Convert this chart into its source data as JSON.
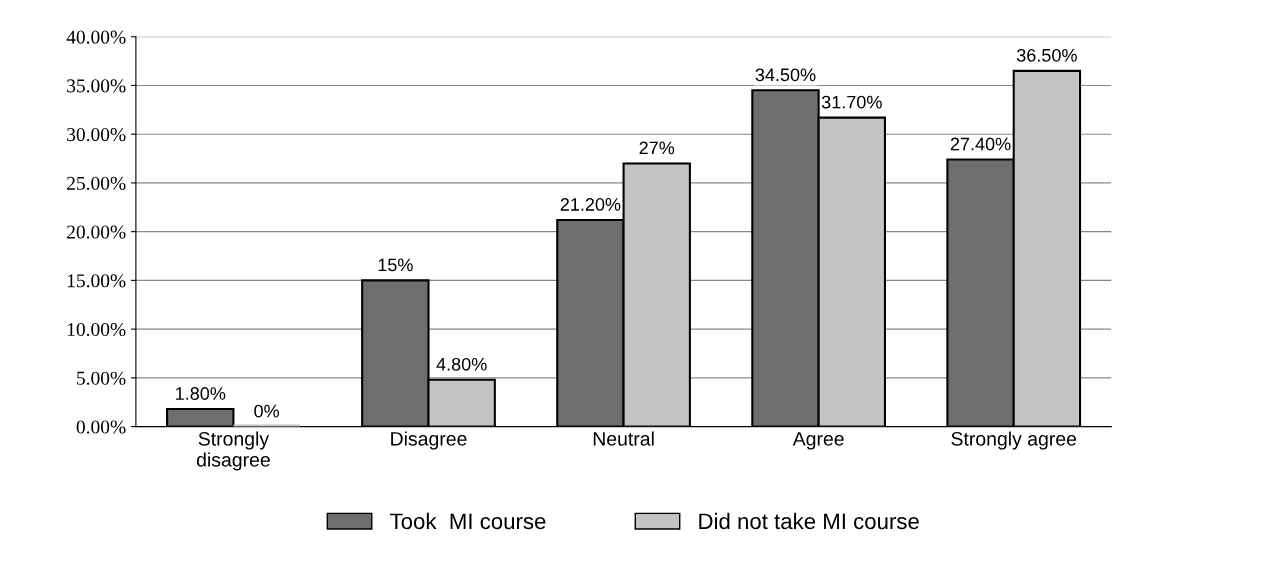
{
  "chart_data": {
    "type": "bar",
    "categories": [
      "Strongly\ndisagree",
      "Disagree",
      "Neutral",
      "Agree",
      "Strongly agree"
    ],
    "series": [
      {
        "name": "Took  MI course",
        "color": "#6e6e6e",
        "values": [
          1.8,
          15,
          21.2,
          34.5,
          27.4
        ],
        "value_labels": [
          "1.80%",
          "15%",
          "21.20%",
          "34.50%",
          "27.40%"
        ]
      },
      {
        "name": "Did not take MI course",
        "color": "#c4c4c4",
        "values": [
          0,
          4.8,
          27,
          31.7,
          36.5
        ],
        "value_labels": [
          "0%",
          "4.80%",
          "27%",
          "31.70%",
          "36.50%"
        ]
      }
    ],
    "ylim": [
      0,
      40
    ],
    "yticks": [
      {
        "value": 0,
        "label": "0.00%"
      },
      {
        "value": 5,
        "label": "5.00%"
      },
      {
        "value": 10,
        "label": "10.00%"
      },
      {
        "value": 15,
        "label": "15.00%"
      },
      {
        "value": 20,
        "label": "20.00%"
      },
      {
        "value": 25,
        "label": "25.00%"
      },
      {
        "value": 30,
        "label": "30.00%"
      },
      {
        "value": 35,
        "label": "35.00%"
      },
      {
        "value": 40,
        "label": "40.00%"
      }
    ],
    "grid": "y",
    "legend": "bottom"
  }
}
